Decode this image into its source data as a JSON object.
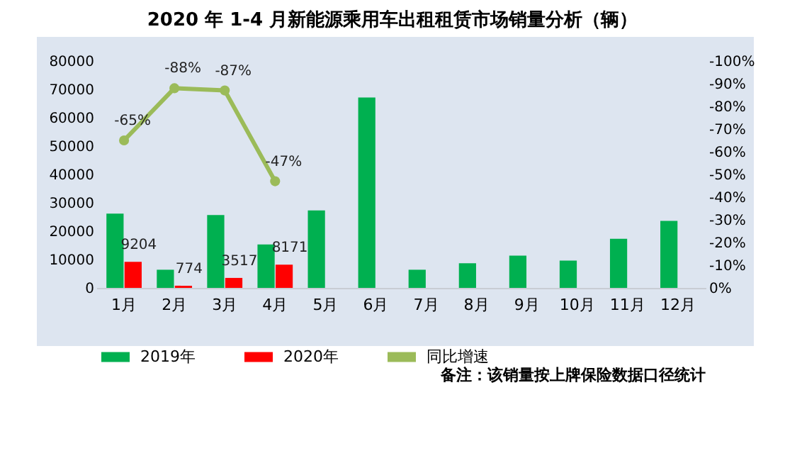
{
  "chart_data": {
    "type": "bar",
    "title": "2020 年 1-4 月新能源乘用车出租租赁市场销量分析（辆）",
    "categories": [
      "1月",
      "2月",
      "3月",
      "4月",
      "5月",
      "6月",
      "7月",
      "8月",
      "9月",
      "10月",
      "11月",
      "12月"
    ],
    "series": [
      {
        "name": "2019年",
        "color": "#00b050",
        "values": [
          26200,
          6400,
          25700,
          15300,
          27300,
          67100,
          6400,
          8700,
          11400,
          9600,
          17300,
          23600
        ]
      },
      {
        "name": "2020年",
        "color": "#ff0000",
        "values": [
          9204,
          774,
          3517,
          8171,
          null,
          null,
          null,
          null,
          null,
          null,
          null,
          null
        ],
        "value_labels": [
          "9204",
          "774",
          "3517",
          "8171",
          null,
          null,
          null,
          null,
          null,
          null,
          null,
          null
        ]
      },
      {
        "name": "同比增速",
        "type": "line",
        "axis": "y2",
        "color": "#9bbb59",
        "values": [
          -65,
          -88,
          -87,
          -47,
          null,
          null,
          null,
          null,
          null,
          null,
          null,
          null
        ],
        "value_labels": [
          "-65%",
          "-88%",
          "-87%",
          "-47%",
          null,
          null,
          null,
          null,
          null,
          null,
          null,
          null
        ]
      }
    ],
    "ylim": [
      0,
      80000
    ],
    "yticks": [
      0,
      10000,
      20000,
      30000,
      40000,
      50000,
      60000,
      70000,
      80000
    ],
    "y2lim": [
      0,
      -100
    ],
    "y2ticks": [
      {
        "value": 0,
        "label": "0%"
      },
      {
        "value": -10,
        "label": "-10%"
      },
      {
        "value": -20,
        "label": "-20%"
      },
      {
        "value": -30,
        "label": "-30%"
      },
      {
        "value": -40,
        "label": "-40%"
      },
      {
        "value": -50,
        "label": "-50%"
      },
      {
        "value": -60,
        "label": "-60%"
      },
      {
        "value": -70,
        "label": "-70%"
      },
      {
        "value": -80,
        "label": "-80%"
      },
      {
        "value": -90,
        "label": "-90%"
      },
      {
        "value": -100,
        "label": "-100%"
      }
    ],
    "legend": "bottom",
    "marker": "circle",
    "annotations": [
      "备注：该销量按上牌保险数据口径统计"
    ]
  }
}
